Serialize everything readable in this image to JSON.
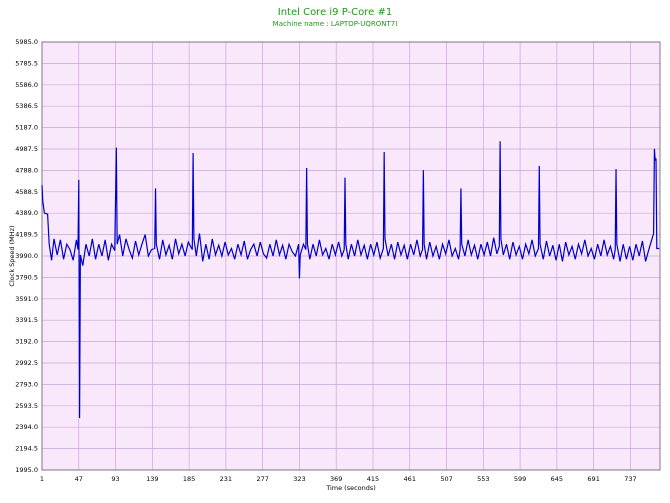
{
  "chart_data": {
    "type": "line",
    "title": "Intel Core i9 P-Core #1",
    "subtitle": "Machine name : LAPTOP-UQRONT7I",
    "x_label": "Time (seconds)",
    "y_label": "Clock Speed (MHz)",
    "grid": true,
    "xlim": [
      1,
      774
    ],
    "ylim": [
      1995.0,
      5985.0
    ],
    "xticks": [
      1,
      47,
      93,
      139,
      185,
      231,
      277,
      323,
      369,
      415,
      461,
      507,
      553,
      599,
      645,
      691,
      737
    ],
    "yticks": [
      {
        "value": 1995.0,
        "label": "1995.0"
      },
      2194.5,
      {
        "value": 2394.0,
        "label": "2394.0"
      },
      2593.5,
      {
        "value": 2793.0,
        "label": "2793.0"
      },
      2992.5,
      {
        "value": 3192.0,
        "label": "3192.0"
      },
      3391.5,
      {
        "value": 3591.0,
        "label": "3591.0"
      },
      3790.5,
      {
        "value": 3990.0,
        "label": "3990.0"
      },
      4189.5,
      {
        "value": 4389.0,
        "label": "4389.0"
      },
      4588.5,
      {
        "value": 4788.0,
        "label": "4788.0"
      },
      4987.5,
      {
        "value": 5187.0,
        "label": "5187.0"
      },
      5386.5,
      {
        "value": 5586.0,
        "label": "5586.0"
      },
      5785.5,
      {
        "value": 5985.0,
        "label": "5985.0"
      }
    ],
    "x": [
      1,
      2,
      4,
      8,
      10,
      13,
      16,
      20,
      24,
      28,
      32,
      36,
      40,
      44,
      46,
      47,
      48,
      49,
      52,
      56,
      60,
      64,
      68,
      72,
      76,
      80,
      84,
      88,
      92,
      94,
      95,
      98,
      102,
      106,
      110,
      114,
      118,
      122,
      126,
      130,
      134,
      138,
      142,
      143,
      144,
      148,
      152,
      156,
      160,
      164,
      168,
      172,
      176,
      180,
      184,
      189,
      190,
      191,
      194,
      198,
      202,
      206,
      210,
      214,
      218,
      222,
      226,
      230,
      234,
      238,
      242,
      246,
      250,
      254,
      258,
      262,
      266,
      270,
      274,
      278,
      282,
      286,
      290,
      294,
      298,
      302,
      306,
      310,
      314,
      318,
      322,
      323,
      324,
      328,
      331,
      332,
      333,
      336,
      340,
      344,
      348,
      352,
      356,
      360,
      364,
      368,
      372,
      376,
      379,
      380,
      381,
      384,
      388,
      392,
      396,
      400,
      404,
      408,
      412,
      416,
      420,
      424,
      428,
      429,
      430,
      434,
      438,
      442,
      446,
      450,
      454,
      458,
      462,
      466,
      470,
      474,
      477,
      478,
      479,
      482,
      486,
      490,
      494,
      498,
      502,
      506,
      510,
      514,
      518,
      522,
      524,
      525,
      526,
      530,
      534,
      538,
      542,
      546,
      550,
      554,
      558,
      562,
      566,
      570,
      573,
      574,
      575,
      578,
      582,
      586,
      590,
      594,
      598,
      602,
      606,
      610,
      614,
      618,
      622,
      623,
      624,
      628,
      632,
      636,
      640,
      644,
      648,
      652,
      656,
      660,
      664,
      668,
      672,
      676,
      680,
      684,
      688,
      692,
      696,
      700,
      704,
      708,
      712,
      716,
      718,
      719,
      720,
      724,
      728,
      732,
      736,
      740,
      744,
      748,
      752,
      756,
      760,
      764,
      766,
      767,
      768,
      769,
      770,
      773
    ],
    "series": [
      {
        "name": "Clock Speed",
        "color": "#0000cc",
        "values": [
          4650,
          4500,
          4390,
          4380,
          4100,
          3950,
          4150,
          4000,
          4140,
          3960,
          4100,
          4050,
          3950,
          4140,
          4050,
          4700,
          2480,
          4000,
          3900,
          4100,
          3990,
          4150,
          3960,
          4100,
          3990,
          4140,
          3950,
          4100,
          4040,
          5000,
          4100,
          4190,
          3990,
          4150,
          4050,
          3970,
          4130,
          4000,
          4100,
          4190,
          3990,
          4050,
          4060,
          4620,
          4100,
          3960,
          4140,
          4000,
          4090,
          3960,
          4150,
          4010,
          4100,
          3990,
          4120,
          4050,
          4950,
          4150,
          3990,
          4200,
          3940,
          4100,
          3960,
          4150,
          4000,
          4090,
          3990,
          4120,
          4000,
          4060,
          3960,
          4100,
          4000,
          4130,
          3960,
          4050,
          4100,
          3990,
          4120,
          4010,
          3970,
          4100,
          3990,
          4140,
          4000,
          4090,
          3960,
          4100,
          4030,
          3990,
          4100,
          3780,
          4000,
          4100,
          4050,
          4810,
          4100,
          3960,
          4100,
          3990,
          4140,
          4000,
          4060,
          3960,
          4100,
          4000,
          4120,
          3990,
          4050,
          4720,
          4100,
          3960,
          4100,
          3990,
          4140,
          4000,
          4090,
          3960,
          4100,
          4000,
          4120,
          3970,
          4060,
          4960,
          4150,
          3990,
          4100,
          3960,
          4120,
          4000,
          4090,
          3960,
          4100,
          4000,
          4140,
          3990,
          4050,
          4790,
          4100,
          3960,
          4120,
          3990,
          4080,
          3960,
          4100,
          4010,
          4140,
          3990,
          4060,
          3960,
          4050,
          4620,
          4100,
          3990,
          4140,
          4000,
          4090,
          3960,
          4100,
          4000,
          4120,
          3990,
          4160,
          4010,
          4080,
          5060,
          4150,
          4000,
          4100,
          3960,
          4120,
          4000,
          4080,
          3960,
          4100,
          4010,
          4140,
          3990,
          4060,
          4830,
          4100,
          3960,
          4130,
          3990,
          4090,
          3950,
          4100,
          3940,
          4120,
          4000,
          4080,
          3960,
          4100,
          4010,
          4140,
          3990,
          4060,
          3960,
          4100,
          3990,
          4140,
          4000,
          4080,
          3960,
          4050,
          4800,
          4100,
          3940,
          4100,
          3960,
          4080,
          3950,
          4100,
          3990,
          4130,
          3940,
          4050,
          4150,
          4200,
          4990,
          4880,
          4900,
          4060,
          4060
        ]
      }
    ]
  }
}
